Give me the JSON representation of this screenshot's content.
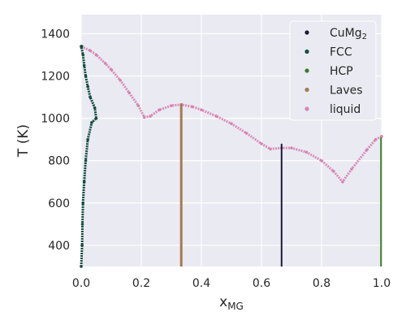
{
  "chart_data": {
    "type": "scatter",
    "xlabel": "x",
    "xlabel_sub": "MG",
    "ylabel": "T (K)",
    "xlim": [
      0.0,
      1.0
    ],
    "ylim": [
      300,
      1490
    ],
    "xticks": [
      "0.0",
      "0.2",
      "0.4",
      "0.6",
      "0.8",
      "1.0"
    ],
    "yticks": [
      "400",
      "600",
      "800",
      "1000",
      "1200",
      "1400"
    ],
    "grid": true,
    "legend_position": "top-right",
    "legend": [
      {
        "label": "CuMg",
        "sub": "2",
        "color": "#1b1b36"
      },
      {
        "label": "FCC",
        "sub": "",
        "color": "#134e40"
      },
      {
        "label": "HCP",
        "sub": "",
        "color": "#3a7a2a"
      },
      {
        "label": "Laves",
        "sub": "",
        "color": "#a57a4f"
      },
      {
        "label": "liquid",
        "sub": "",
        "color": "#d784b2"
      }
    ],
    "series": [
      {
        "name": "CuMg2",
        "color": "#1b1b36",
        "points": [
          [
            0.667,
            300
          ],
          [
            0.667,
            880
          ]
        ]
      },
      {
        "name": "FCC",
        "color": "#134e40",
        "points": [
          [
            0.0,
            300
          ],
          [
            0.0,
            1340
          ],
          [
            0.003,
            400
          ],
          [
            0.004,
            500
          ],
          [
            0.006,
            600
          ],
          [
            0.01,
            700
          ],
          [
            0.015,
            800
          ],
          [
            0.022,
            900
          ],
          [
            0.035,
            980
          ],
          [
            0.05,
            1000
          ],
          [
            0.045,
            1050
          ],
          [
            0.03,
            1100
          ],
          [
            0.022,
            1150
          ],
          [
            0.015,
            1200
          ],
          [
            0.01,
            1250
          ],
          [
            0.006,
            1300
          ],
          [
            0.002,
            1340
          ]
        ]
      },
      {
        "name": "HCP",
        "color": "#3a7a2a",
        "points": [
          [
            0.998,
            300
          ],
          [
            0.998,
            910
          ]
        ]
      },
      {
        "name": "Laves",
        "color": "#a57a4f",
        "points": [
          [
            0.333,
            300
          ],
          [
            0.333,
            1070
          ]
        ]
      },
      {
        "name": "liquid",
        "color": "#d784b2",
        "points": [
          [
            0.0,
            1340
          ],
          [
            0.03,
            1320
          ],
          [
            0.05,
            1300
          ],
          [
            0.08,
            1260
          ],
          [
            0.1,
            1230
          ],
          [
            0.13,
            1180
          ],
          [
            0.16,
            1120
          ],
          [
            0.19,
            1060
          ],
          [
            0.21,
            1005
          ],
          [
            0.23,
            1010
          ],
          [
            0.26,
            1040
          ],
          [
            0.3,
            1060
          ],
          [
            0.333,
            1065
          ],
          [
            0.37,
            1055
          ],
          [
            0.4,
            1040
          ],
          [
            0.45,
            1010
          ],
          [
            0.5,
            975
          ],
          [
            0.55,
            930
          ],
          [
            0.6,
            880
          ],
          [
            0.63,
            855
          ],
          [
            0.667,
            860
          ],
          [
            0.7,
            860
          ],
          [
            0.75,
            840
          ],
          [
            0.8,
            800
          ],
          [
            0.84,
            750
          ],
          [
            0.87,
            700
          ],
          [
            0.9,
            760
          ],
          [
            0.95,
            850
          ],
          [
            0.98,
            900
          ],
          [
            1.0,
            915
          ]
        ]
      }
    ]
  }
}
